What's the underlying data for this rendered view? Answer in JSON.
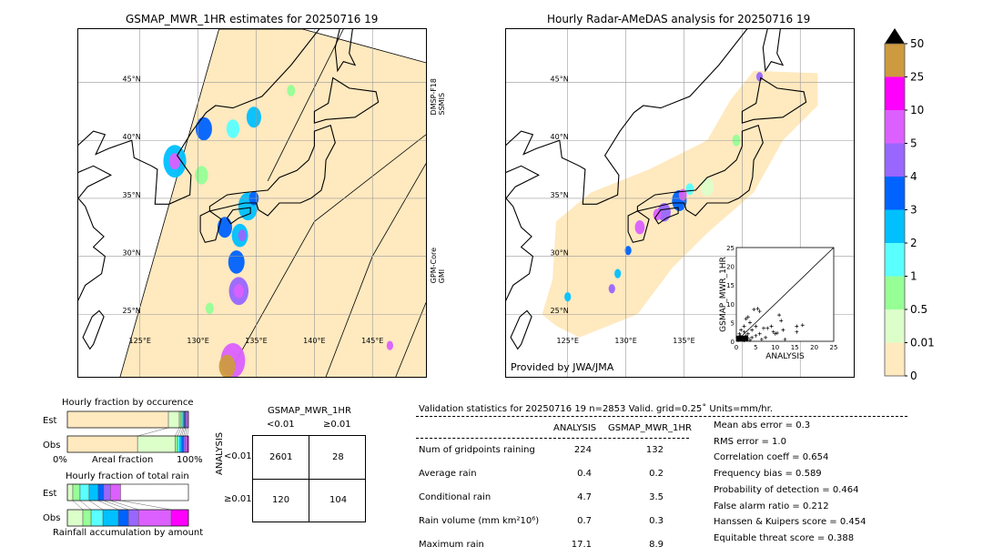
{
  "left_map": {
    "title": "GSMAP_MWR_1HR estimates for 20250716 19",
    "lon_labels": [
      "125°E",
      "130°E",
      "135°E",
      "140°E",
      "145°E"
    ],
    "lat_labels": [
      "45°N",
      "40°N",
      "35°N",
      "30°N",
      "25°N"
    ],
    "swath_labels": [
      "DMSP-F18\nSSMIS",
      "GPM-Core\nGMI"
    ]
  },
  "right_map": {
    "title": "Hourly Radar-AMeDAS analysis for 20250716 19",
    "lon_labels": [
      "125°E",
      "130°E",
      "135°E"
    ],
    "lat_labels": [
      "45°N",
      "40°N",
      "35°N",
      "30°N",
      "25°N"
    ],
    "credit": "Provided by JWA/JMA"
  },
  "colorbar": {
    "ticks": [
      "50",
      "25",
      "10",
      "5",
      "4",
      "3",
      "2",
      "1",
      "0.5",
      "0.01",
      "0"
    ],
    "colors": [
      "#cd9a3f",
      "#ff00ff",
      "#db60ff",
      "#9966ff",
      "#0062ff",
      "#00c0ff",
      "#5affff",
      "#96ff96",
      "#dcffca",
      "#ffe9bf"
    ],
    "extend_color": "#000000"
  },
  "scatter": {
    "xlabel": "ANALYSIS",
    "ylabel": "GSMAP_MWR_1HR",
    "xlim": [
      0,
      25
    ],
    "ylim": [
      0,
      25
    ],
    "ticks": [
      "0",
      "5",
      "10",
      "15",
      "20",
      "25"
    ],
    "points": [
      [
        0.5,
        0.3
      ],
      [
        1,
        0.5
      ],
      [
        1.5,
        1
      ],
      [
        2,
        0.2
      ],
      [
        2.5,
        1.5
      ],
      [
        3,
        0.8
      ],
      [
        0.8,
        2
      ],
      [
        1.2,
        3
      ],
      [
        2,
        4
      ],
      [
        2.5,
        6
      ],
      [
        3,
        6.5
      ],
      [
        3.5,
        5
      ],
      [
        4,
        3
      ],
      [
        4.5,
        8.5
      ],
      [
        5.5,
        8.7
      ],
      [
        6,
        8
      ],
      [
        5,
        4
      ],
      [
        6,
        2
      ],
      [
        7,
        3.5
      ],
      [
        7.5,
        1
      ],
      [
        8,
        3.5
      ],
      [
        9,
        4
      ],
      [
        9.5,
        2.5
      ],
      [
        10,
        2
      ],
      [
        10.5,
        2.2
      ],
      [
        11,
        7
      ],
      [
        11.5,
        5.5
      ],
      [
        12,
        3
      ],
      [
        12.5,
        0.5
      ],
      [
        15.5,
        4
      ],
      [
        15.5,
        2.5
      ],
      [
        17,
        4.3
      ],
      [
        3,
        2
      ],
      [
        4,
        1
      ],
      [
        1,
        1.5
      ],
      [
        0.3,
        1
      ],
      [
        2,
        2.5
      ],
      [
        6.5,
        0.5
      ],
      [
        5,
        1.5
      ],
      [
        3.5,
        0.3
      ]
    ]
  },
  "occurrence": {
    "title": "Hourly fraction by occurence",
    "rows": [
      "Est",
      "Obs"
    ],
    "xlabel": "Areal fraction",
    "x0": "0%",
    "x1": "100%",
    "est": [
      0.835,
      0.09,
      0.015,
      0.015,
      0.01,
      0.01,
      0.01,
      0.015
    ],
    "obs": [
      0.58,
      0.31,
      0.02,
      0.02,
      0.015,
      0.015,
      0.015,
      0.015,
      0.01
    ]
  },
  "total_rain": {
    "title": "Hourly fraction of total rain",
    "rows": [
      "Est",
      "Obs"
    ],
    "xlabel": "Rainfall accumulation by amount",
    "est": [
      0.045,
      0.06,
      0.075,
      0.075,
      0.045,
      0.055,
      0.085
    ],
    "obs": [
      0.128,
      0.068,
      0.098,
      0.128,
      0.083,
      0.083,
      0.27,
      0.143
    ]
  },
  "contingency": {
    "title": "GSMAP_MWR_1HR",
    "col_labels": [
      "<0.01",
      "≥0.01"
    ],
    "row_title": "ANALYSIS",
    "row_labels": [
      "<0.01",
      "≥0.01"
    ],
    "cells": [
      [
        "2601",
        "28"
      ],
      [
        "120",
        "104"
      ]
    ]
  },
  "validation": {
    "header": "Validation statistics for 20250716 19  n=2853 Valid. grid=0.25˚ Units=mm/hr.",
    "columns": [
      "ANALYSIS",
      "GSMAP_MWR_1HR"
    ],
    "rows": [
      {
        "label": "Num of gridpoints raining",
        "a": "224",
        "g": "132"
      },
      {
        "label": "Average rain",
        "a": "0.4",
        "g": "0.2"
      },
      {
        "label": "Conditional rain",
        "a": "4.7",
        "g": "3.5"
      },
      {
        "label": "Rain volume (mm km²10⁶)",
        "a": "0.7",
        "g": "0.3"
      },
      {
        "label": "Maximum rain",
        "a": "17.1",
        "g": "8.9"
      }
    ],
    "scores": [
      "Mean abs error =    0.3",
      "RMS error =    1.0",
      "Correlation coeff =  0.654",
      "Frequency bias =  0.589",
      "Probability of detection =  0.464",
      "False alarm ratio =  0.212",
      "Hanssen & Kuipers score =  0.454",
      "Equitable threat score =  0.388"
    ]
  }
}
